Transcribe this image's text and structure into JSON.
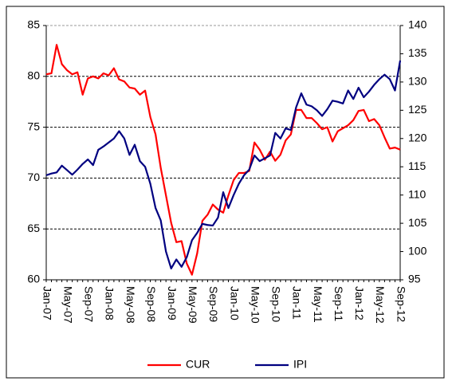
{
  "chart_data": {
    "type": "line",
    "categories": [
      "Jan-07",
      null,
      null,
      null,
      "May-07",
      null,
      null,
      null,
      "Sep-07",
      null,
      null,
      null,
      "Jan-08",
      null,
      null,
      null,
      "May-08",
      null,
      null,
      null,
      "Sep-08",
      null,
      null,
      null,
      "Jan-09",
      null,
      null,
      null,
      "May-09",
      null,
      null,
      null,
      "Sep-09",
      null,
      null,
      null,
      "Jan-10",
      null,
      null,
      null,
      "May-10",
      null,
      null,
      null,
      "Sep-10",
      null,
      null,
      null,
      "Jan-11",
      null,
      null,
      null,
      "May-11",
      null,
      null,
      null,
      "Sep-11",
      null,
      null,
      null,
      "Jan-12",
      null,
      null,
      null,
      "May-12",
      null,
      null,
      null,
      "Sep-12"
    ],
    "series": [
      {
        "name": "CUR",
        "color": "#ff0000",
        "axis": "y",
        "values": [
          80.2,
          80.3,
          83.1,
          81.2,
          80.6,
          80.2,
          80.4,
          78.2,
          79.8,
          80.0,
          79.8,
          80.3,
          80.1,
          80.8,
          79.7,
          79.5,
          78.9,
          78.8,
          78.2,
          78.6,
          76.0,
          74.3,
          71.0,
          68.3,
          65.6,
          63.7,
          63.8,
          61.6,
          60.5,
          62.6,
          65.8,
          66.4,
          67.4,
          66.9,
          66.6,
          68.3,
          69.8,
          70.5,
          70.5,
          70.7,
          73.5,
          72.8,
          71.8,
          72.6,
          71.7,
          72.3,
          73.7,
          74.3,
          76.7,
          76.7,
          75.9,
          75.9,
          75.4,
          74.8,
          75.0,
          73.6,
          74.6,
          74.9,
          75.2,
          75.7,
          76.6,
          76.7,
          75.6,
          75.8,
          75.2,
          74.0,
          72.9,
          73.0,
          72.8
        ]
      },
      {
        "name": "IPI",
        "color": "#000080",
        "axis": "y2",
        "values": [
          113.5,
          113.8,
          114.0,
          115.2,
          114.4,
          113.6,
          114.5,
          115.5,
          116.3,
          115.3,
          118.0,
          118.6,
          119.3,
          120.0,
          121.3,
          120.0,
          117.1,
          118.9,
          116.0,
          115.0,
          112.0,
          107.7,
          105.5,
          100.0,
          97.0,
          98.6,
          97.3,
          99.0,
          102.0,
          103.3,
          104.9,
          104.7,
          104.6,
          106.0,
          110.5,
          107.7,
          110.0,
          112.0,
          113.5,
          114.5,
          117.0,
          116.0,
          116.5,
          117.0,
          121.0,
          120.0,
          121.8,
          121.5,
          125.5,
          128.0,
          126.0,
          125.7,
          125.0,
          124.0,
          125.2,
          126.7,
          126.5,
          126.2,
          128.5,
          127.0,
          129.0,
          127.3,
          128.3,
          129.5,
          130.5,
          131.3,
          130.5,
          128.5,
          133.8
        ]
      }
    ],
    "ylim": [
      60,
      85
    ],
    "yticks": [
      60,
      65,
      70,
      75,
      80,
      85
    ],
    "y2lim": [
      95,
      140
    ],
    "y2ticks": [
      95,
      100,
      105,
      110,
      115,
      120,
      125,
      130,
      135,
      140
    ],
    "grid": true
  }
}
